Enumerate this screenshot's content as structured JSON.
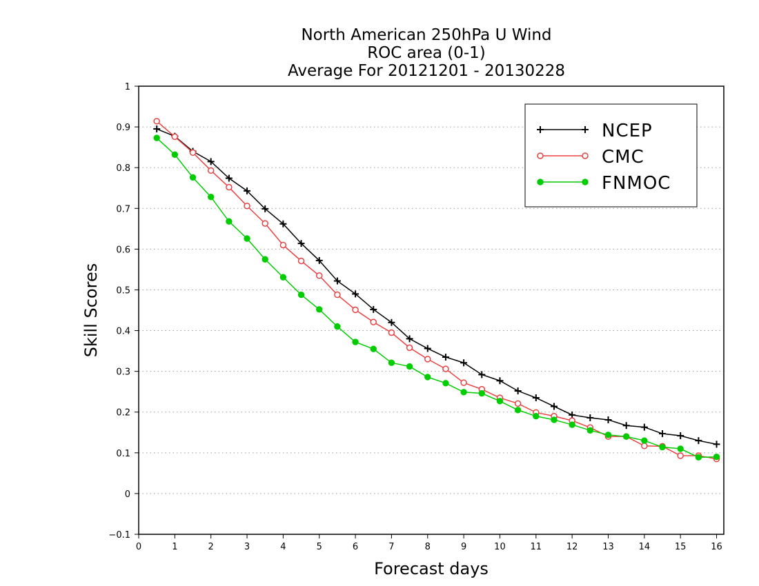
{
  "chart_data": {
    "type": "line",
    "title": [
      "North American 250hPa U Wind",
      "ROC area (0-1)",
      "Average For 20121201 - 20130228"
    ],
    "xlabel": "Forecast days",
    "ylabel": "Skill Scores",
    "xlim": [
      0,
      16.2
    ],
    "ylim": [
      -0.1,
      1
    ],
    "xticks": [
      0,
      1,
      2,
      3,
      4,
      5,
      6,
      7,
      8,
      9,
      10,
      11,
      12,
      13,
      14,
      15,
      16
    ],
    "xtick_labels": [
      "0",
      "1",
      "2",
      "3",
      "4",
      "5",
      "6",
      "7",
      "8",
      "9",
      "10",
      "11",
      "12",
      "13",
      "14",
      "15",
      "16"
    ],
    "yticks": [
      -0.1,
      0,
      0.1,
      0.2,
      0.3,
      0.4,
      0.5,
      0.6,
      0.7,
      0.8,
      0.9,
      1
    ],
    "ytick_labels": [
      "−0.1",
      "0",
      "0.1",
      "0.2",
      "0.3",
      "0.4",
      "0.5",
      "0.6",
      "0.7",
      "0.8",
      "0.9",
      "1"
    ],
    "grid": "horizontal dotted",
    "legend_position": "top-right",
    "x": [
      0.5,
      1.0,
      1.5,
      2.0,
      2.5,
      3.0,
      3.5,
      4.0,
      4.5,
      5.0,
      5.5,
      6.0,
      6.5,
      7.0,
      7.5,
      8.0,
      8.5,
      9.0,
      9.5,
      10.0,
      10.5,
      11.0,
      11.5,
      12.0,
      12.5,
      13.0,
      13.5,
      14.0,
      14.5,
      15.0,
      15.5,
      16.0
    ],
    "series": [
      {
        "name": "NCEP",
        "color": "#000000",
        "marker": "plus",
        "values": [
          0.895,
          0.877,
          0.84,
          0.815,
          0.774,
          0.743,
          0.699,
          0.662,
          0.614,
          0.572,
          0.522,
          0.49,
          0.452,
          0.42,
          0.38,
          0.356,
          0.335,
          0.321,
          0.292,
          0.277,
          0.252,
          0.235,
          0.214,
          0.193,
          0.186,
          0.181,
          0.167,
          0.163,
          0.147,
          0.142,
          0.13,
          0.121
        ]
      },
      {
        "name": "CMC",
        "color": "#e84040",
        "marker": "open-circle",
        "values": [
          0.914,
          0.876,
          0.837,
          0.793,
          0.752,
          0.706,
          0.663,
          0.61,
          0.571,
          0.535,
          0.488,
          0.451,
          0.421,
          0.395,
          0.358,
          0.33,
          0.306,
          0.272,
          0.256,
          0.235,
          0.221,
          0.199,
          0.19,
          0.179,
          0.162,
          0.14,
          0.14,
          0.117,
          0.116,
          0.093,
          0.093,
          0.085
        ]
      },
      {
        "name": "FNMOC",
        "color": "#00cc00",
        "marker": "filled-circle",
        "values": [
          0.873,
          0.832,
          0.776,
          0.728,
          0.668,
          0.626,
          0.575,
          0.531,
          0.488,
          0.452,
          0.41,
          0.372,
          0.355,
          0.321,
          0.312,
          0.286,
          0.271,
          0.249,
          0.246,
          0.227,
          0.205,
          0.19,
          0.181,
          0.169,
          0.155,
          0.144,
          0.14,
          0.13,
          0.114,
          0.11,
          0.089,
          0.09
        ]
      }
    ]
  }
}
